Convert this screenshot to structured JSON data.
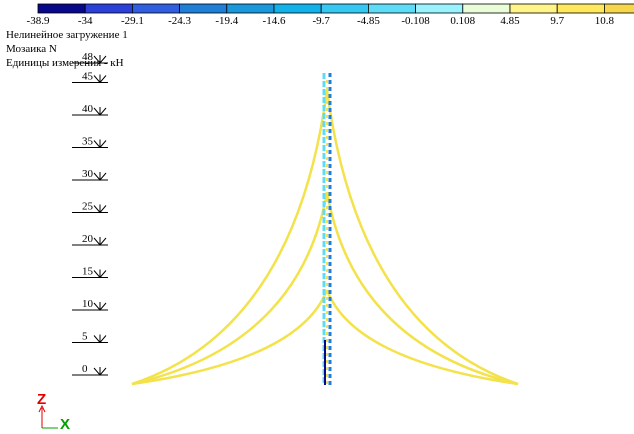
{
  "legend": {
    "values": [
      "-38.9",
      "-34",
      "-29.1",
      "-24.3",
      "-19.4",
      "-14.6",
      "-9.7",
      "-4.85",
      "-0.108",
      "0.108",
      "4.85",
      "9.7",
      "10.8"
    ],
    "colors": [
      "#08088a",
      "#2a40d8",
      "#2f5fe0",
      "#1f7fd6",
      "#1a98dc",
      "#10b2ea",
      "#35c8f2",
      "#5ddcf8",
      "#9af2ff",
      "#eafcd8",
      "#fff488",
      "#ffe85c",
      "#f6d64a"
    ]
  },
  "info": [
    "Нелинейное загружение 1",
    "Мозаика N",
    "Единицы измерения - кН"
  ],
  "levels": [
    48,
    45,
    40,
    35,
    30,
    25,
    20,
    15,
    10,
    5,
    0
  ],
  "axes": {
    "z": "Z",
    "x": "X"
  }
}
